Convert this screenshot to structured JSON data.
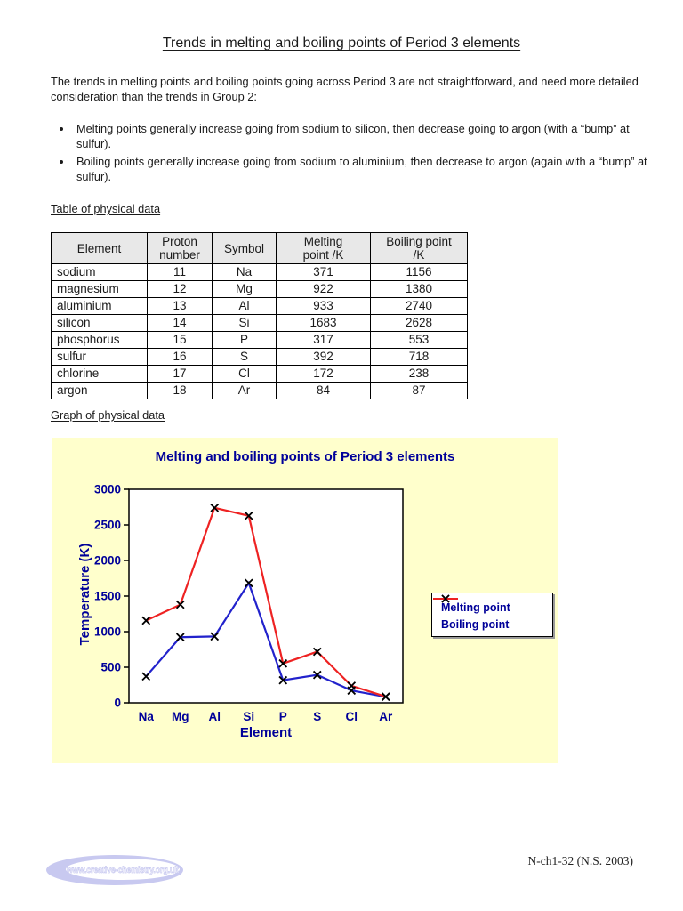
{
  "page": {
    "title": "Trends in melting and boiling points of Period 3 elements",
    "intro": "The trends in melting points and boiling points going across Period 3 are not straightforward, and need more detailed consideration than the trends in Group 2:",
    "bullets": [
      "Melting points generally increase going from sodium to silicon, then decrease going to argon (with a “bump” at sulfur).",
      "Boiling points generally increase going from sodium to aluminium, then decrease to argon (again with a “bump” at sulfur)."
    ],
    "table_heading": "Table of physical data",
    "graph_heading": "Graph of physical data"
  },
  "table": {
    "headers": [
      [
        "Element"
      ],
      [
        "Proton",
        "number"
      ],
      [
        "Symbol"
      ],
      [
        "Melting",
        "point /K"
      ],
      [
        "Boiling point",
        "/K"
      ]
    ],
    "rows": [
      [
        "sodium",
        "11",
        "Na",
        "371",
        "1156"
      ],
      [
        "magnesium",
        "12",
        "Mg",
        "922",
        "1380"
      ],
      [
        "aluminium",
        "13",
        "Al",
        "933",
        "2740"
      ],
      [
        "silicon",
        "14",
        "Si",
        "1683",
        "2628"
      ],
      [
        "phosphorus",
        "15",
        "P",
        "317",
        "553"
      ],
      [
        "sulfur",
        "16",
        "S",
        "392",
        "718"
      ],
      [
        "chlorine",
        "17",
        "Cl",
        "172",
        "238"
      ],
      [
        "argon",
        "18",
        "Ar",
        "84",
        "87"
      ]
    ]
  },
  "chart_data": {
    "type": "line",
    "title": "Melting and boiling points of Period 3 elements",
    "categories": [
      "Na",
      "Mg",
      "Al",
      "Si",
      "P",
      "S",
      "Cl",
      "Ar"
    ],
    "series": [
      {
        "name": "Melting point",
        "color": "#2222cc",
        "values": [
          371,
          922,
          933,
          1683,
          317,
          392,
          172,
          84
        ]
      },
      {
        "name": "Boiling point",
        "color": "#ee2222",
        "values": [
          1156,
          1380,
          2740,
          2628,
          553,
          718,
          238,
          87
        ]
      }
    ],
    "xlabel": "Element",
    "ylabel": "Temperature (K)",
    "ylim": [
      0,
      3000
    ],
    "ytick_step": 500,
    "marker": "x",
    "marker_color": "#000000",
    "legend_position": "right",
    "background": "#ffffcc",
    "text_color": "#000099",
    "grid": false
  },
  "footer": {
    "logo_text": "www.creative-chemistry.org.uk",
    "doc_ref": "N-ch1-32 (N.S. 2003)"
  },
  "colors": {
    "chart_text": "#000099",
    "chart_background": "#ffffcc",
    "melting_line": "#2222cc",
    "boiling_line": "#ee2222",
    "logo_lavender": "#c8c9f0",
    "table_header_bg": "#e8e8e8"
  }
}
